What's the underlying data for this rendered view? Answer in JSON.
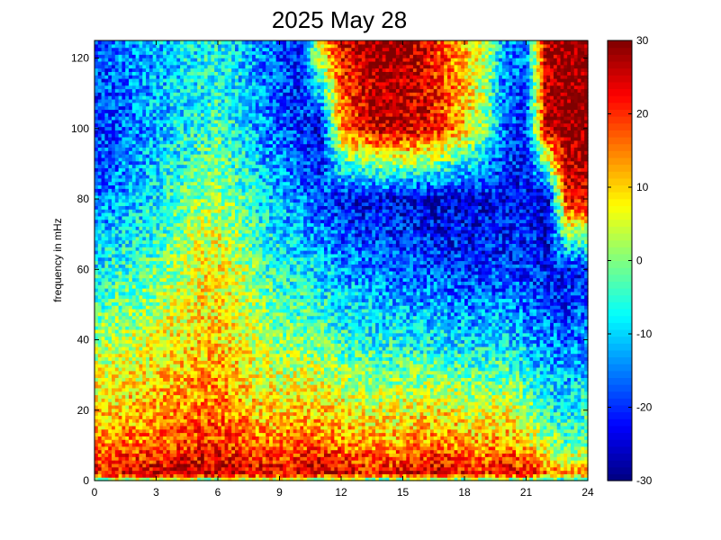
{
  "chart_data": {
    "type": "heatmap",
    "title": "2025 May 28",
    "xlabel": "",
    "ylabel": "frequency in mHz",
    "xlim": [
      0,
      24
    ],
    "ylim": [
      0,
      125
    ],
    "x_ticks": [
      "0",
      "3",
      "6",
      "9",
      "12",
      "15",
      "18",
      "21",
      "24"
    ],
    "y_ticks": [
      "0",
      "20",
      "40",
      "60",
      "80",
      "100",
      "120"
    ],
    "colorbar": {
      "colormap": "jet",
      "clim": [
        -30,
        30
      ],
      "ticks": [
        "-30",
        "-20",
        "-10",
        "0",
        "10",
        "20",
        "30"
      ]
    },
    "grid": false,
    "z_profile": {
      "hours": [
        0,
        1,
        2,
        3,
        4,
        5,
        6,
        7,
        8,
        9,
        10,
        11,
        12,
        13,
        14,
        15,
        16,
        17,
        18,
        19,
        20,
        21,
        22,
        23,
        24
      ],
      "freq_mhz": [
        0,
        2,
        5,
        10,
        20,
        40,
        60,
        80,
        100,
        125
      ],
      "values": [
        [
          -5,
          -2,
          0,
          0,
          -3,
          -4,
          -5,
          -3,
          -2,
          -2,
          -3,
          -5,
          -6,
          -5,
          -5,
          -5,
          -4,
          -4,
          -5,
          -5,
          -5,
          -6,
          -9,
          -10,
          -5
        ],
        [
          22,
          24,
          26,
          27,
          28,
          28,
          28,
          27,
          25,
          24,
          26,
          27,
          25,
          23,
          22,
          22,
          24,
          25,
          22,
          21,
          24,
          22,
          18,
          12,
          14
        ],
        [
          20,
          21,
          22,
          22,
          23,
          24,
          24,
          23,
          21,
          21,
          23,
          24,
          22,
          20,
          19,
          20,
          22,
          22,
          20,
          19,
          21,
          18,
          12,
          6,
          8
        ],
        [
          15,
          15,
          16,
          17,
          18,
          20,
          20,
          18,
          16,
          16,
          17,
          17,
          15,
          14,
          13,
          14,
          15,
          16,
          14,
          13,
          15,
          10,
          4,
          -2,
          0
        ],
        [
          10,
          10,
          11,
          13,
          14,
          15,
          16,
          13,
          10,
          9,
          10,
          10,
          8,
          7,
          6,
          7,
          8,
          8,
          6,
          5,
          6,
          2,
          -6,
          -8,
          -5
        ],
        [
          2,
          3,
          4,
          6,
          8,
          10,
          10,
          7,
          3,
          0,
          0,
          -2,
          -5,
          -6,
          -7,
          -7,
          -8,
          -9,
          -10,
          -10,
          -9,
          -12,
          -15,
          -16,
          -14
        ],
        [
          -8,
          -6,
          -4,
          -2,
          2,
          7,
          8,
          4,
          -2,
          -6,
          -8,
          -10,
          -13,
          -15,
          -16,
          -17,
          -18,
          -19,
          -20,
          -20,
          -19,
          -20,
          -22,
          -23,
          -21
        ],
        [
          -16,
          -14,
          -11,
          -8,
          -4,
          0,
          2,
          -2,
          -8,
          -12,
          -15,
          -18,
          -22,
          -24,
          -24,
          -24,
          -25,
          -25,
          -25,
          -24,
          -23,
          -22,
          -28,
          24,
          24
        ],
        [
          -20,
          -18,
          -15,
          -12,
          -9,
          -6,
          -4,
          -8,
          -13,
          -17,
          -20,
          -24,
          12,
          22,
          26,
          26,
          24,
          18,
          10,
          0,
          -18,
          -20,
          26,
          30,
          30
        ],
        [
          -18,
          -16,
          -14,
          -12,
          -10,
          -8,
          -7,
          -10,
          -14,
          -18,
          -21,
          10,
          24,
          28,
          30,
          29,
          24,
          18,
          12,
          4,
          -14,
          -16,
          28,
          30,
          30
        ]
      ]
    }
  }
}
